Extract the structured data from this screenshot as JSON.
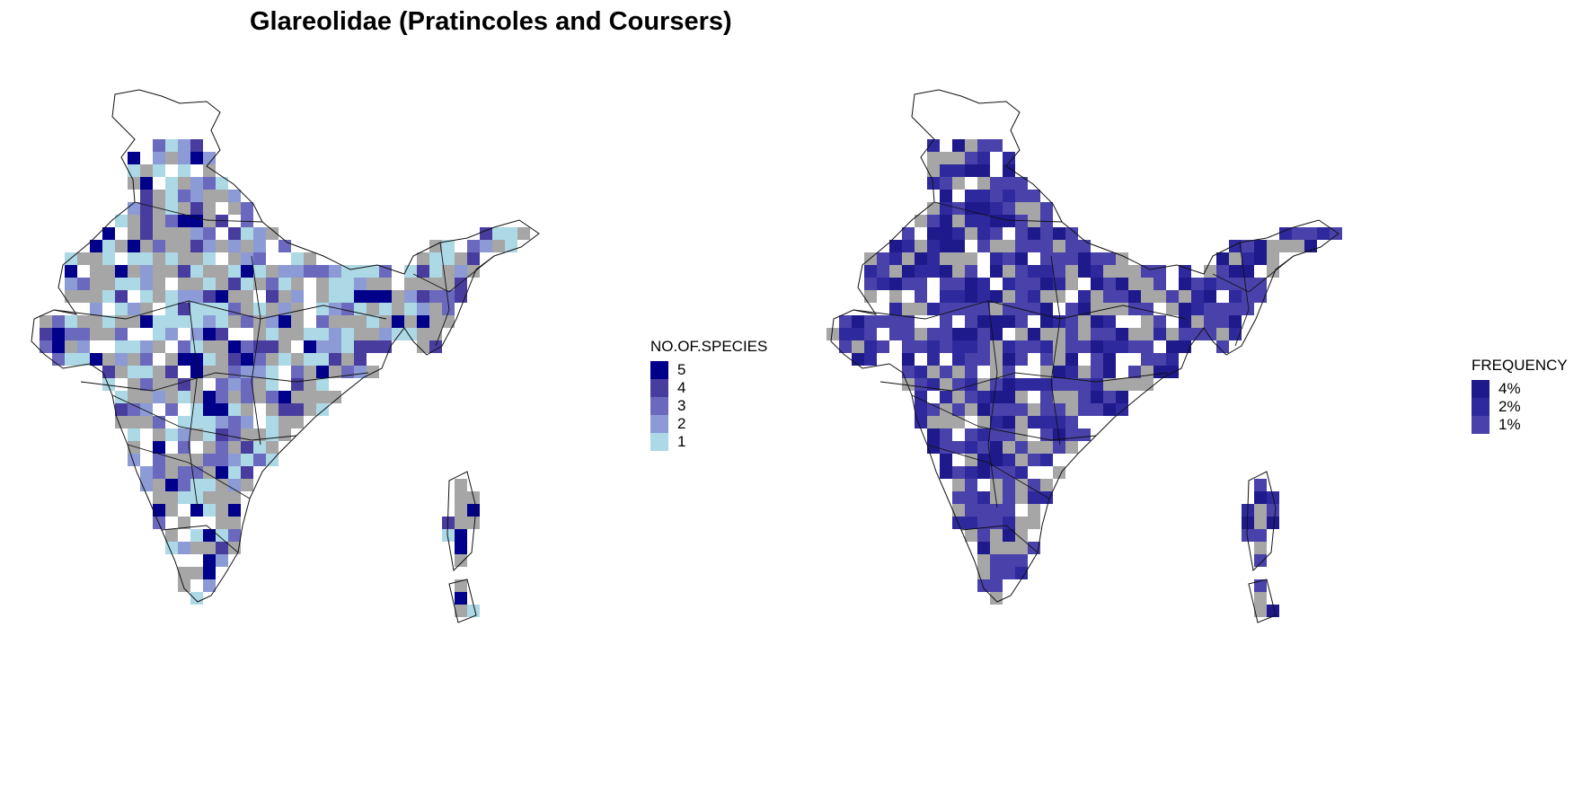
{
  "title": "Glareolidae (Pratincoles and Coursers)",
  "colors": {
    "no_data": "#a6a6a6",
    "border": "#111111",
    "background": "#ffffff"
  },
  "left_map": {
    "legend": {
      "title": "NO.OF.SPECIES",
      "items": [
        {
          "label": "5",
          "color": "#00008b"
        },
        {
          "label": "4",
          "color": "#483d9e"
        },
        {
          "label": "3",
          "color": "#6b69bd"
        },
        {
          "label": "2",
          "color": "#8c9bd6"
        },
        {
          "label": "1",
          "color": "#add8e6"
        }
      ]
    }
  },
  "right_map": {
    "legend": {
      "title": "FREQUENCY",
      "items": [
        {
          "label": "4%",
          "color": "#1e1a8c"
        },
        {
          "label": "2%",
          "color": "#2e2a9e"
        },
        {
          "label": "1%",
          "color": "#4a42ab"
        }
      ]
    }
  }
}
